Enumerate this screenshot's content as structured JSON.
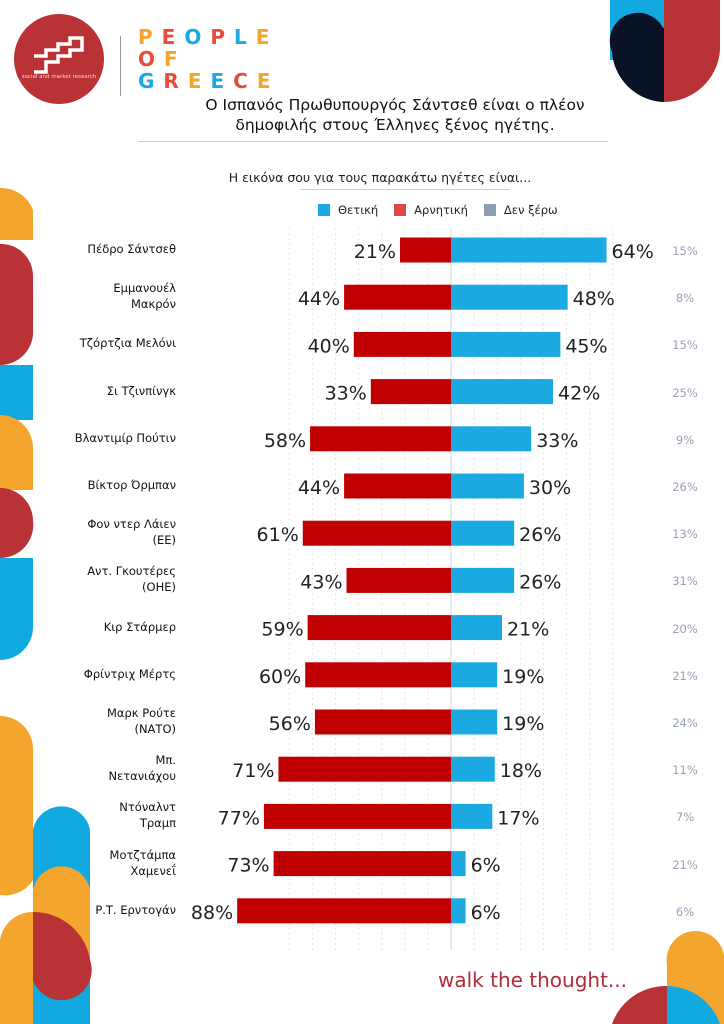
{
  "branding": {
    "logo_subtitle": "social and market research",
    "people_of_greece": [
      {
        "text": "PEOPLE",
        "colors": [
          "#f4a52e",
          "#e84c3d",
          "#1aa9e0",
          "#e84c3d",
          "#1aa9e0",
          "#f4a52e"
        ]
      },
      {
        "text": "OF",
        "colors": [
          "#e84c3d",
          "#f4a52e"
        ]
      },
      {
        "text": "GREECE",
        "colors": [
          "#1aa9e0",
          "#e84c3d",
          "#f4a52e",
          "#1aa9e0",
          "#e84c3d",
          "#f4a52e"
        ]
      }
    ],
    "tagline": "walk the thought..."
  },
  "header": {
    "title_line1": "Ο Ισπανός Πρωθυπουργός Σάντσεθ είναι ο πλέον",
    "title_line2": "δημοφιλής στους Έλληνες ξένος ηγέτης.",
    "question": "Η εικόνα σου για τους παρακάτω ηγέτες είναι..."
  },
  "colors": {
    "positive": "#1aa9e0",
    "negative": "#c00000",
    "dont_know": "#8e9fb5",
    "accent_red": "#b83236",
    "accent_orange": "#f4a52e",
    "accent_blue": "#12a8e0",
    "dark_navy": "#0a1228"
  },
  "chart_data": {
    "type": "bar",
    "orientation": "horizontal-diverging",
    "title": "Ο Ισπανός Πρωθυπουργός Σάντσεθ είναι ο πλέον δημοφιλής στους Έλληνες ξένος ηγέτης.",
    "subtitle": "Η εικόνα σου για τους παρακάτω ηγέτες είναι...",
    "legend": [
      "Θετική",
      "Αρνητική",
      "Δεν ξέρω"
    ],
    "legend_placement": "top-right",
    "unit": "%",
    "xlim": [
      -100,
      100
    ],
    "grid": true,
    "categories": [
      "Πέδρο Σάντσεθ",
      "Εμμανουέλ\nΜακρόν",
      "Τζόρτζια Μελόνι",
      "Σι Τζινπίνγκ",
      "Βλαντιμίρ Πούτιν",
      "Βίκτορ Όρμπαν",
      "Φον ντερ Λάιεν\n(ΕΕ)",
      "Αντ. Γκουτέρες\n(ΟΗΕ)",
      "Κιρ Στάρμερ",
      "Φρίντριχ Μέρτς",
      "Μαρκ Ρούτε\n(ΝΑΤΟ)",
      "Μπ.\nΝετανιάχου",
      "Ντόναλντ\nΤραμπ",
      "Μοτζτάμπα\nΧαμενεΐ",
      "Ρ.Τ. Ερντογάν"
    ],
    "series": [
      {
        "name": "Θετική",
        "values": [
          64,
          48,
          45,
          42,
          33,
          30,
          26,
          26,
          21,
          19,
          19,
          18,
          17,
          6,
          6
        ]
      },
      {
        "name": "Αρνητική",
        "values": [
          21,
          44,
          40,
          33,
          58,
          44,
          61,
          43,
          59,
          60,
          56,
          71,
          77,
          73,
          88
        ]
      },
      {
        "name": "Δεν ξέρω",
        "values": [
          15,
          8,
          15,
          25,
          9,
          26,
          13,
          31,
          20,
          21,
          24,
          11,
          7,
          21,
          6
        ]
      }
    ]
  }
}
